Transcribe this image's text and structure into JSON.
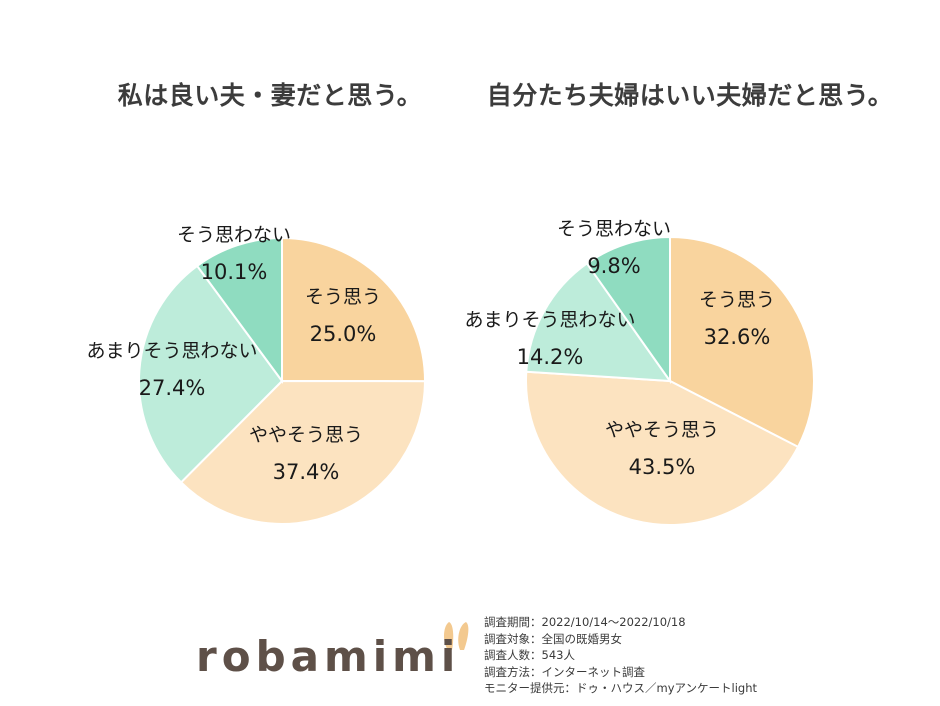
{
  "chart_data": [
    {
      "type": "pie",
      "title": "私は良い夫・妻だと思う。",
      "slices": [
        {
          "label": "そう思う",
          "value": 25.0,
          "pct_text": "25.0%",
          "color": "#f9d49e"
        },
        {
          "label": "ややそう思う",
          "value": 37.4,
          "pct_text": "37.4%",
          "color": "#fce3c0"
        },
        {
          "label": "あまりそう思わない",
          "value": 27.4,
          "pct_text": "27.4%",
          "color": "#bdecda"
        },
        {
          "label": "そう思わない",
          "value": 10.1,
          "pct_text": "10.1%",
          "color": "#8fdcc0"
        }
      ]
    },
    {
      "type": "pie",
      "title": "自分たち夫婦はいい夫婦だと思う。",
      "slices": [
        {
          "label": "そう思う",
          "value": 32.6,
          "pct_text": "32.6%",
          "color": "#f9d49e"
        },
        {
          "label": "ややそう思う",
          "value": 43.5,
          "pct_text": "43.5%",
          "color": "#fce3c0"
        },
        {
          "label": "あまりそう思わない",
          "value": 14.2,
          "pct_text": "14.2%",
          "color": "#bdecda"
        },
        {
          "label": "そう思わない",
          "value": 9.8,
          "pct_text": "9.8%",
          "color": "#8fdcc0"
        }
      ]
    }
  ],
  "logo": {
    "text": "robamimi",
    "color": "#5e5048",
    "ear_color": "#f3c98f"
  },
  "survey": {
    "period": "調査期間：2022/10/14～2022/10/18",
    "target": "調査対象：全国の既婚男女",
    "count": "調査人数：543人",
    "method": "調査方法：インターネット調査",
    "provider": "モニター提供元：ドゥ・ハウス／myアンケートlight"
  }
}
